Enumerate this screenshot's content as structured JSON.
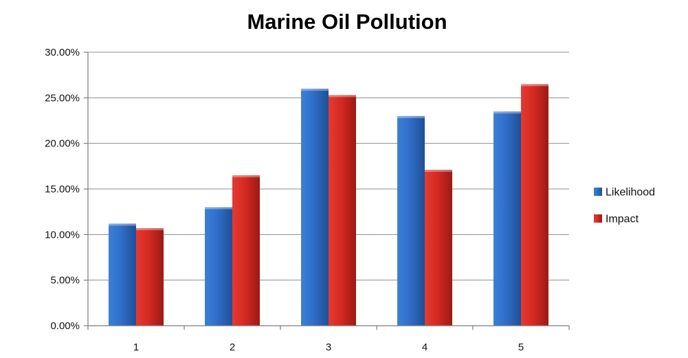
{
  "chart_data": {
    "type": "bar",
    "title": "Marine Oil Pollution",
    "xlabel": "",
    "ylabel": "",
    "categories": [
      "1",
      "2",
      "3",
      "4",
      "5"
    ],
    "series": [
      {
        "name": "Likelihood",
        "color": "#2f6fc8",
        "values": [
          11.2,
          13.0,
          26.0,
          23.0,
          23.5
        ]
      },
      {
        "name": "Impact",
        "color": "#d42a22",
        "values": [
          10.7,
          16.5,
          25.3,
          17.1,
          26.5
        ]
      }
    ],
    "ylim": [
      0,
      30
    ],
    "yticks": [
      0,
      5,
      10,
      15,
      20,
      25,
      30
    ],
    "ytick_labels": [
      "0.00%",
      "5.00%",
      "10.00%",
      "15.00%",
      "20.00%",
      "25.00%",
      "30.00%"
    ],
    "grid": true,
    "legend_position": "right"
  }
}
